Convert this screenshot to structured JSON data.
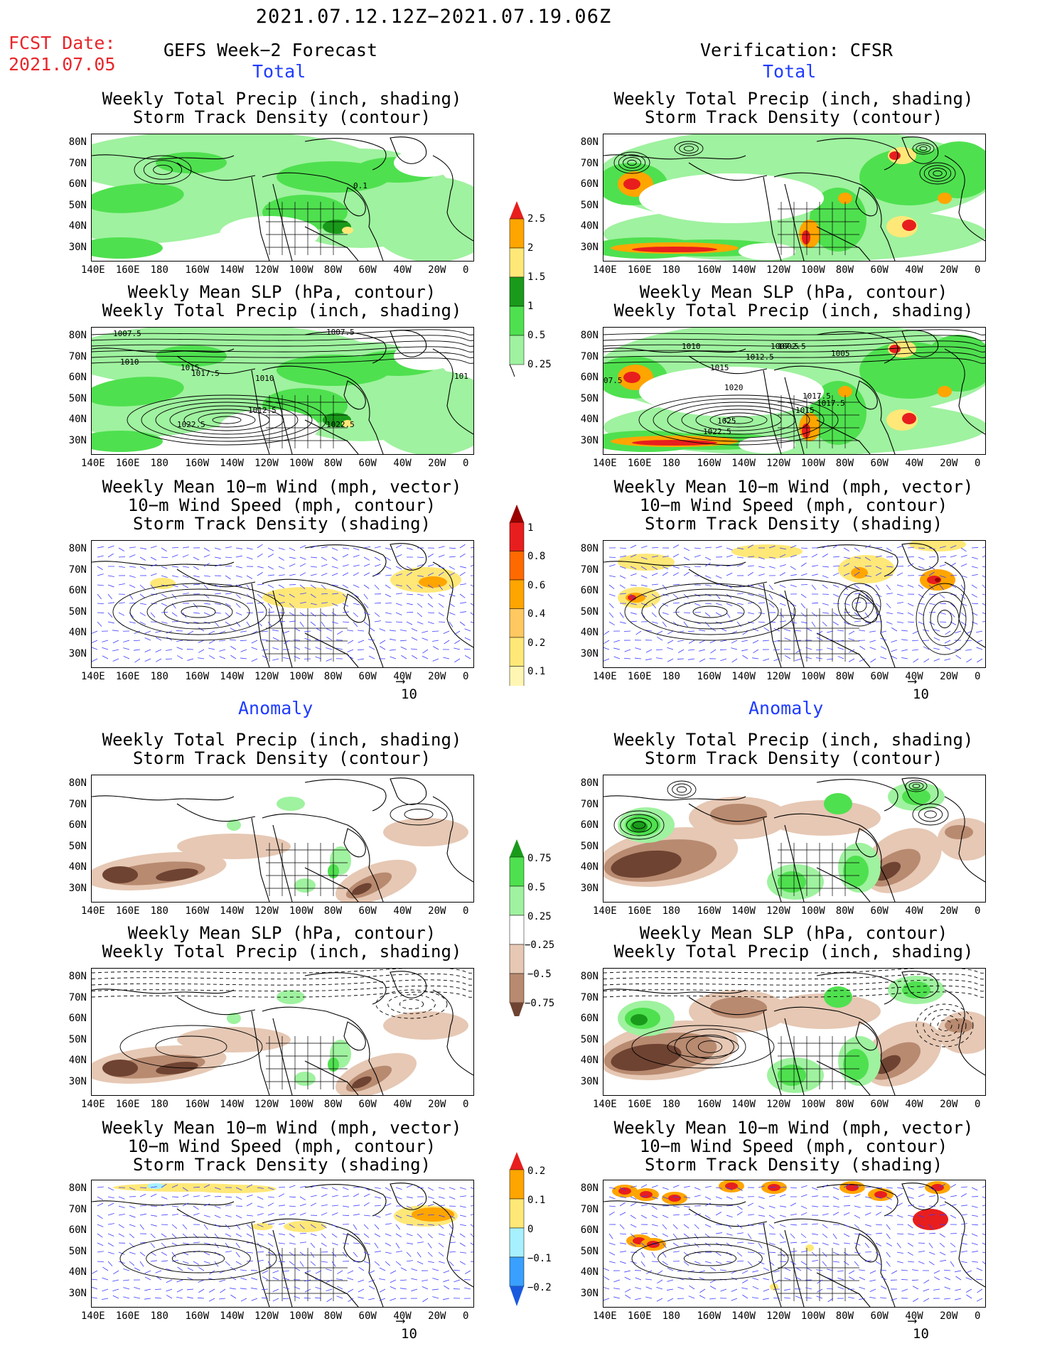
{
  "header": {
    "date_range": "2021.07.12.12Z−2021.07.19.06Z",
    "fcst_label": "FCST Date:",
    "fcst_date": "2021.07.05",
    "left_title": "GEFS Week−2 Forecast",
    "right_title": "Verification: CFSR"
  },
  "sections": {
    "total": "Total",
    "anomaly": "Anomaly"
  },
  "panels": {
    "p1": {
      "line1": "Weekly Total Precip (inch, shading)",
      "line2": "Storm Track Density (contour)",
      "line3": ""
    },
    "p2": {
      "line1": "Weekly Mean SLP (hPa, contour)",
      "line2": "Weekly Total Precip (inch, shading)",
      "line3": ""
    },
    "p3": {
      "line1": "Weekly Mean 10−m Wind (mph, vector)",
      "line2": "10−m Wind Speed (mph, contour)",
      "line3": "Storm Track Density (shading)"
    }
  },
  "axes": {
    "lat_labels": [
      "80N",
      "70N",
      "60N",
      "50N",
      "40N",
      "30N"
    ],
    "lon_labels": [
      "140E",
      "160E",
      "180",
      "160W",
      "140W",
      "120W",
      "100W",
      "80W",
      "60W",
      "40W",
      "20W",
      "0"
    ]
  },
  "contour_labels": {
    "l_total_precip": [
      "0.1"
    ],
    "l_total_slp": [
      "1007.5",
      "1007.5",
      "1010",
      "1015",
      "1017.5",
      "1010",
      "1012.5",
      "1022.5",
      "1022.5",
      "101"
    ],
    "r_total_slp": [
      "1010",
      "1002.5",
      "1005",
      "1012.5",
      "1007.5",
      "1017.5",
      "1015",
      "1020",
      "1017.5",
      "1015",
      "1025",
      "1022.5",
      "07.5"
    ]
  },
  "colorbars": {
    "precip_total": [
      "0.25",
      "0.5",
      "1",
      "1.5",
      "2",
      "2.5"
    ],
    "storm_total": [
      "0.1",
      "0.2",
      "0.4",
      "0.6",
      "0.8",
      "1"
    ],
    "precip_anom": [
      "−0.75",
      "−0.5",
      "−0.25",
      "0.25",
      "0.5",
      "0.75"
    ],
    "storm_anom": [
      "−0.2",
      "−0.1",
      "0",
      "0.1",
      "0.2"
    ]
  },
  "vector_scale": "10",
  "colors": {
    "light_green": "#9ff29f",
    "mid_green": "#4fe04f",
    "dark_green": "#1a9a1a",
    "yellow": "#ffe878",
    "orange": "#ffa500",
    "red": "#e81e1e",
    "dark_red": "#9a0000",
    "brown_light": "#e6c8b4",
    "brown_mid": "#b88a70",
    "brown_dark": "#6e4332",
    "cyan": "#a7f0ff",
    "blue": "#3aa0ff",
    "red_title": "#e8262a",
    "blue_title": "#1f3cff"
  }
}
